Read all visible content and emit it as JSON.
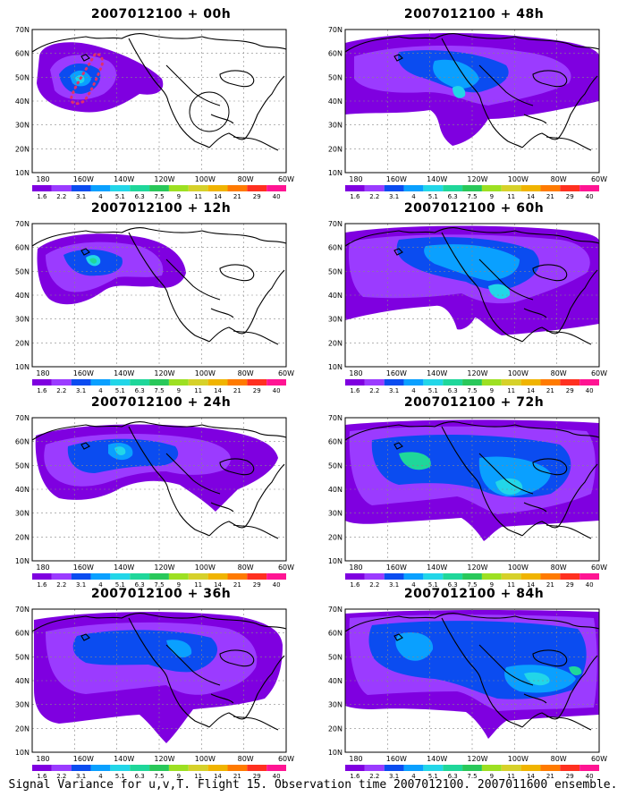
{
  "colors": {
    "levels": [
      "#7f00e0",
      "#9b3bff",
      "#0b4cf0",
      "#0aa0ff",
      "#22d6e8",
      "#1fd79a",
      "#29c85a",
      "#9de022",
      "#d6d12a",
      "#f0b400",
      "#ff7a00",
      "#ff3020",
      "#ff1493"
    ]
  },
  "colorbar_labels": [
    "1.6",
    "2.2",
    "3.1",
    "4",
    "5.1",
    "6.3",
    "7.5",
    "9",
    "11",
    "14",
    "21",
    "29",
    "40"
  ],
  "axes": {
    "lon_ticks": [
      "180",
      "160W",
      "140W",
      "120W",
      "100W",
      "80W",
      "60W"
    ],
    "lat_ticks": [
      "70N",
      "60N",
      "50N",
      "40N",
      "30N",
      "20N",
      "10N"
    ]
  },
  "panels": [
    {
      "title": "2007012100 + 00h"
    },
    {
      "title": "2007012100 + 48h"
    },
    {
      "title": "2007012100 + 12h"
    },
    {
      "title": "2007012100 + 60h"
    },
    {
      "title": "2007012100 + 24h"
    },
    {
      "title": "2007012100 + 72h"
    },
    {
      "title": "2007012100 + 36h"
    },
    {
      "title": "2007012100 + 84h"
    }
  ],
  "caption": "Signal Variance for u,v,T. Flight 15. Observation time 2007012100. 2007011600 ensemble."
}
